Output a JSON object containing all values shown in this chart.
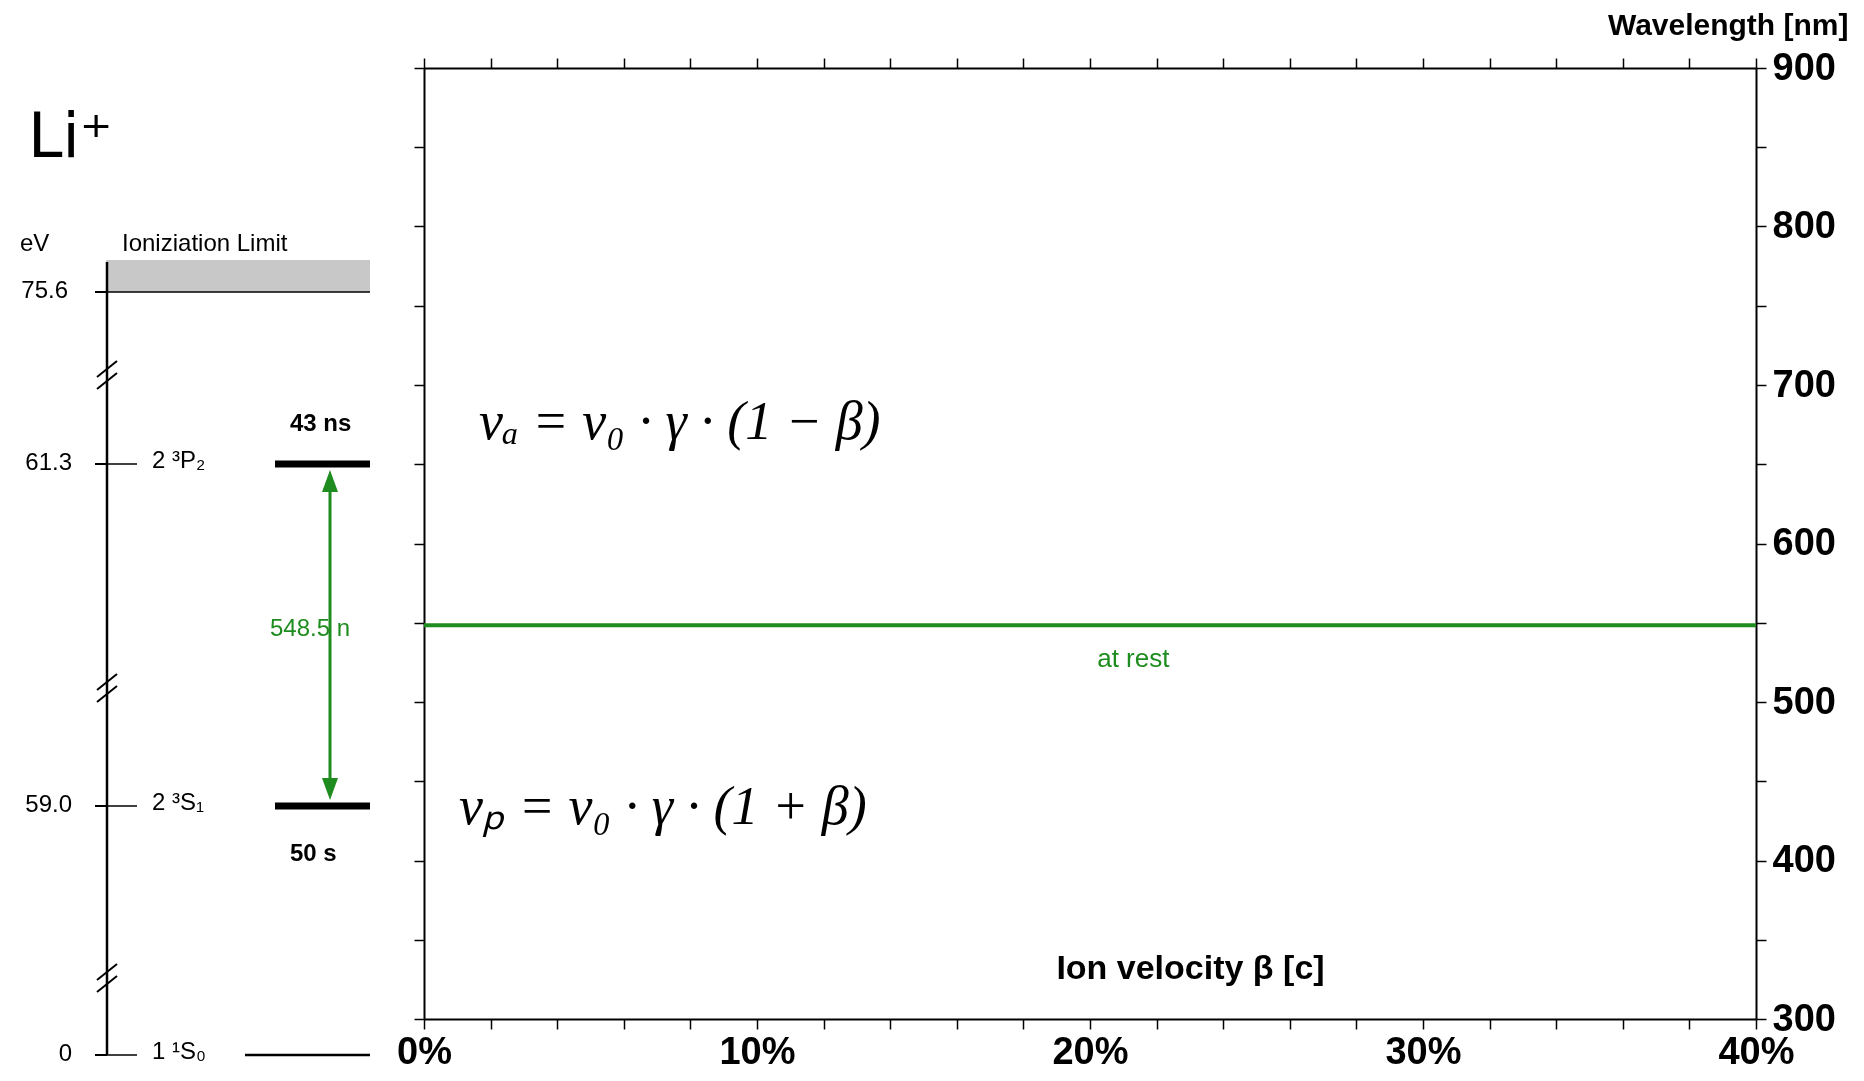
{
  "chart_data": {
    "type": "line",
    "x": [
      0,
      40
    ],
    "series": [
      {
        "color": "#1e8c1e",
        "values": [
          548.5,
          548.5
        ]
      }
    ],
    "xlim": [
      0,
      40
    ],
    "xticks": [
      {
        "value": 0,
        "label": "0%"
      },
      {
        "value": 2,
        "label": null
      },
      {
        "value": 4,
        "label": null
      },
      {
        "value": 6,
        "label": null
      },
      {
        "value": 8,
        "label": null
      },
      {
        "value": 10,
        "label": "10%"
      },
      {
        "value": 12,
        "label": null
      },
      {
        "value": 14,
        "label": null
      },
      {
        "value": 16,
        "label": null
      },
      {
        "value": 18,
        "label": null
      },
      {
        "value": 20,
        "label": "20%"
      },
      {
        "value": 22,
        "label": null
      },
      {
        "value": 24,
        "label": null
      },
      {
        "value": 26,
        "label": null
      },
      {
        "value": 28,
        "label": null
      },
      {
        "value": 30,
        "label": "30%"
      },
      {
        "value": 32,
        "label": null
      },
      {
        "value": 34,
        "label": null
      },
      {
        "value": 36,
        "label": null
      },
      {
        "value": 38,
        "label": null
      },
      {
        "value": 40,
        "label": "40%"
      }
    ],
    "ylim": [
      300,
      900
    ],
    "yticks": [
      300,
      {
        "value": 350,
        "label": null
      },
      400,
      {
        "value": 450,
        "label": null
      },
      500,
      {
        "value": 550,
        "label": null
      },
      600,
      {
        "value": 650,
        "label": null
      },
      700,
      {
        "value": 750,
        "label": null
      },
      800,
      {
        "value": 850,
        "label": null
      },
      900
    ],
    "xlabel": "Ion velocity β [c]",
    "ylabel": "Wavelength [nm]",
    "tick_labels": "xy",
    "marker": "none",
    "line_style": "solid",
    "annotations": [
      {
        "text": "at rest",
        "x": 21.3,
        "y": 548.5
      },
      "νₐ = ν₀ · γ · (1 − β)",
      "νₚ = ν₀ · γ · (1 + β)",
      "Li⁺",
      "eV",
      "Ioniziation Limit",
      "75.6",
      "61.3",
      "2 ³P₂",
      "43 ns",
      "548.5 n",
      "59.0",
      "2 ³S₁",
      "50 s",
      "0",
      "1 ¹S₀"
    ]
  }
}
